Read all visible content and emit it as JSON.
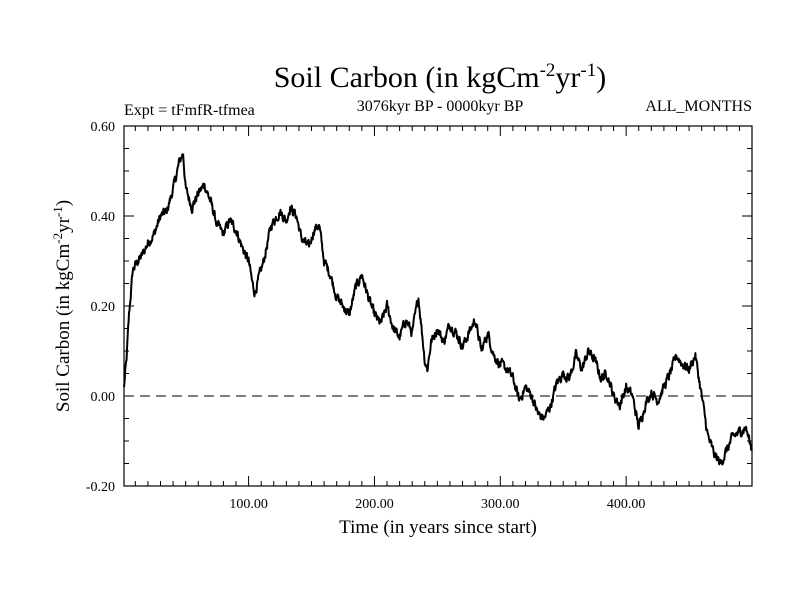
{
  "chart_data": {
    "type": "line",
    "title_main": "Soil Carbon (in kgCm",
    "title_sup1": "-2",
    "title_mid": "yr",
    "title_sup2": "-1",
    "title_end": ")",
    "subtitle_left": "Expt = tFmfR-tfmea",
    "subtitle_center": "3076kyr BP - 0000kyr BP",
    "subtitle_right": "ALL_MONTHS",
    "xlabel": "Time (in years since start)",
    "ylabel_main": "Soil Carbon (in kgCm",
    "ylabel_sup1": "-2",
    "ylabel_mid": "yr",
    "ylabel_sup2": "-1",
    "ylabel_end": ")",
    "xlim": [
      1,
      500
    ],
    "ylim": [
      -0.2,
      0.6
    ],
    "xticks": [
      100,
      200,
      300,
      400
    ],
    "xtick_labels": [
      "100.00",
      "200.00",
      "300.00",
      "400.00"
    ],
    "yticks": [
      -0.2,
      0,
      0.2,
      0.4,
      0.6
    ],
    "ytick_labels": [
      "-0.20",
      "0.00",
      "0.20",
      "0.40",
      "0.60"
    ],
    "reference_line_y": 0,
    "series": [
      {
        "name": "Soil Carbon",
        "x": [
          1,
          3,
          5,
          8,
          12,
          15,
          20,
          25,
          30,
          35,
          40,
          45,
          48,
          50,
          55,
          60,
          65,
          70,
          75,
          80,
          85,
          90,
          95,
          100,
          103,
          105,
          108,
          112,
          118,
          125,
          130,
          133,
          138,
          142,
          148,
          152,
          156,
          160,
          165,
          170,
          175,
          180,
          185,
          190,
          195,
          200,
          205,
          210,
          215,
          220,
          225,
          230,
          235,
          240,
          242,
          245,
          250,
          255,
          260,
          265,
          270,
          275,
          280,
          285,
          290,
          295,
          300,
          305,
          310,
          315,
          320,
          325,
          330,
          335,
          340,
          345,
          350,
          355,
          360,
          365,
          370,
          375,
          380,
          385,
          390,
          395,
          400,
          405,
          410,
          415,
          420,
          425,
          430,
          435,
          440,
          445,
          450,
          455,
          460,
          465,
          470,
          475,
          480,
          485,
          490,
          495,
          500
        ],
        "y": [
          0.02,
          0.08,
          0.18,
          0.28,
          0.3,
          0.31,
          0.34,
          0.36,
          0.4,
          0.41,
          0.46,
          0.52,
          0.54,
          0.46,
          0.42,
          0.45,
          0.47,
          0.43,
          0.38,
          0.36,
          0.39,
          0.37,
          0.33,
          0.3,
          0.25,
          0.23,
          0.26,
          0.3,
          0.38,
          0.41,
          0.39,
          0.42,
          0.4,
          0.35,
          0.33,
          0.37,
          0.38,
          0.3,
          0.27,
          0.22,
          0.2,
          0.18,
          0.24,
          0.27,
          0.22,
          0.18,
          0.16,
          0.2,
          0.15,
          0.13,
          0.17,
          0.14,
          0.22,
          0.08,
          0.06,
          0.12,
          0.15,
          0.12,
          0.16,
          0.14,
          0.11,
          0.14,
          0.17,
          0.1,
          0.14,
          0.09,
          0.07,
          0.06,
          0.04,
          -0.01,
          0.02,
          0.0,
          -0.04,
          -0.05,
          -0.02,
          0.03,
          0.05,
          0.04,
          0.09,
          0.06,
          0.1,
          0.08,
          0.04,
          0.05,
          0.0,
          -0.02,
          0.02,
          0.0,
          -0.07,
          -0.02,
          0.01,
          -0.01,
          0.02,
          0.05,
          0.09,
          0.07,
          0.06,
          0.09,
          0.0,
          -0.09,
          -0.13,
          -0.15,
          -0.12,
          -0.09,
          -0.08,
          -0.07,
          -0.12
        ]
      }
    ]
  }
}
